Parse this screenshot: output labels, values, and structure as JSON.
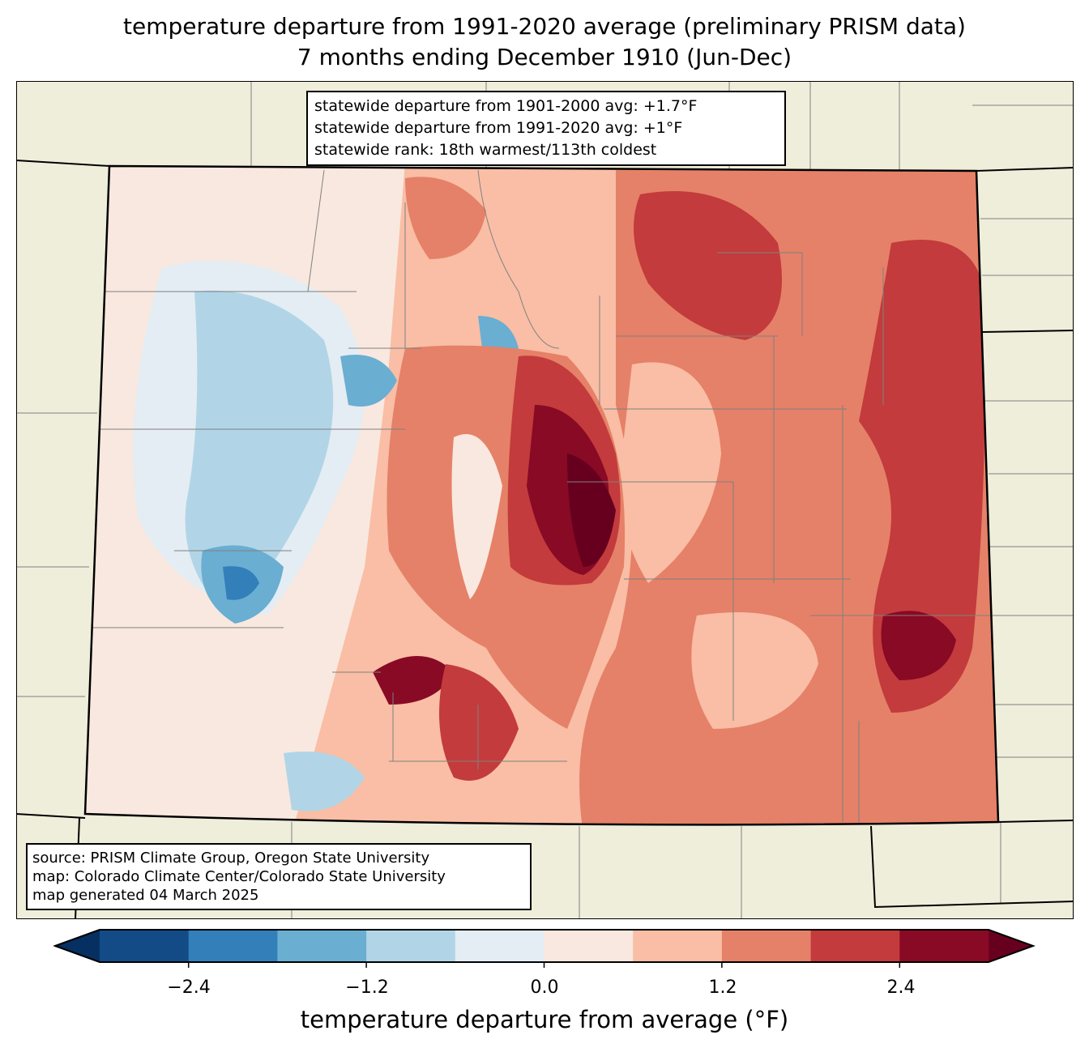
{
  "title": {
    "line1": "temperature departure from 1991-2020 average (preliminary PRISM data)",
    "line2": "7 months ending December 1910 (Jun-Dec)"
  },
  "info": [
    "statewide departure from 1901-2000 avg: +1.7°F",
    "statewide departure from 1991-2020 avg: +1°F",
    "statewide rank: 18th warmest/113th coldest"
  ],
  "source": [
    "source: PRISM Climate Group, Oregon State University",
    "map: Colorado Climate Center/Colorado State University",
    "map generated 04 March 2025"
  ],
  "colorbar": {
    "label": "temperature departure from average (°F)",
    "ticks": [
      "−2.4",
      "−1.2",
      "0.0",
      "1.2",
      "2.4"
    ],
    "colors": [
      "#053061",
      "#134b87",
      "#327fb9",
      "#6aaed2",
      "#b1d5e7",
      "#e4edf3",
      "#f9e8df",
      "#f9bea5",
      "#e58168",
      "#c33b3c",
      "#880a25",
      "#67001f"
    ],
    "levels": [
      -3.0,
      -2.4,
      -1.8,
      -1.2,
      -0.6,
      0.0,
      0.6,
      1.2,
      1.8,
      2.4,
      3.0
    ]
  },
  "colors": {
    "land": "#efeedb",
    "border": "#000000",
    "county": "#808080"
  }
}
